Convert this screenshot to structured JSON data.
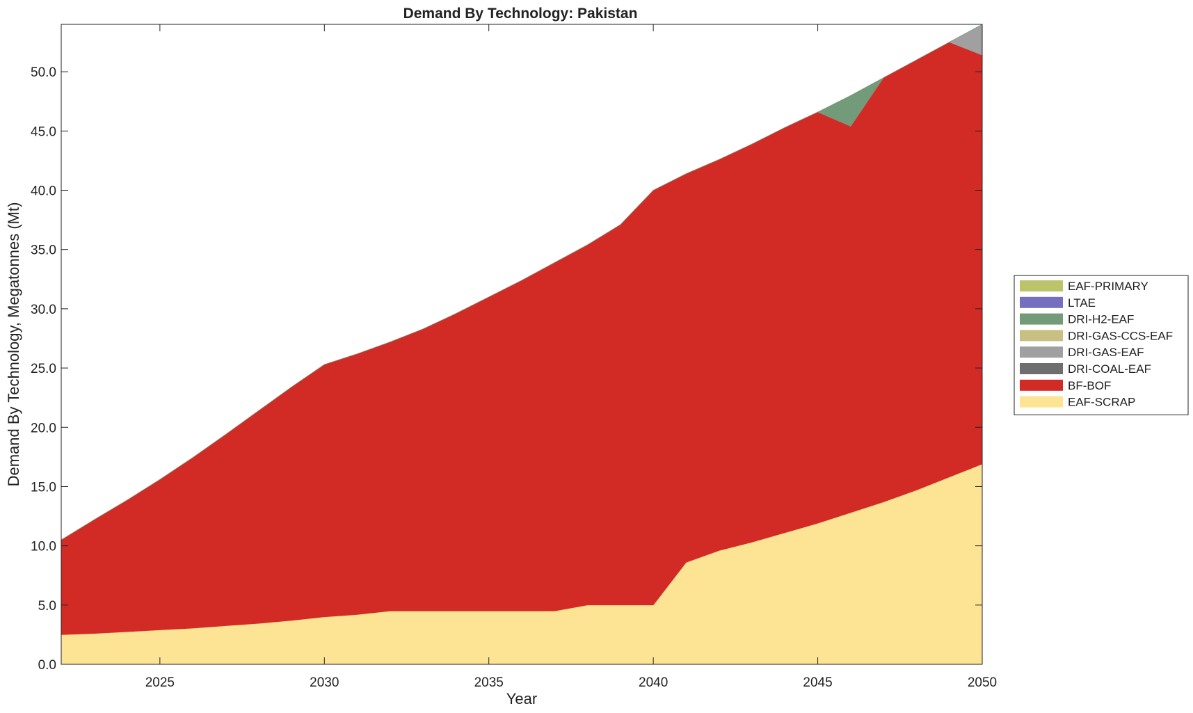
{
  "chart_data": {
    "type": "area",
    "stacked": true,
    "title": "Demand By Technology: Pakistan",
    "xlabel": "Year",
    "ylabel": "Demand By Technology, Megatonnes (Mt)",
    "xlim": [
      2022,
      2050
    ],
    "ylim": [
      0,
      54
    ],
    "x_ticks": [
      2025,
      2030,
      2035,
      2040,
      2045,
      2050
    ],
    "y_ticks": [
      "0.0",
      "5.0",
      "10.0",
      "15.0",
      "20.0",
      "25.0",
      "30.0",
      "35.0",
      "40.0",
      "45.0",
      "50.0"
    ],
    "grid": false,
    "legend_position": "right",
    "x": [
      2022,
      2023,
      2024,
      2025,
      2026,
      2027,
      2028,
      2029,
      2030,
      2031,
      2032,
      2033,
      2034,
      2035,
      2036,
      2037,
      2038,
      2039,
      2040,
      2041,
      2042,
      2043,
      2044,
      2045,
      2046,
      2047,
      2048,
      2049,
      2050
    ],
    "series": [
      {
        "name": "EAF-SCRAP",
        "color": "#FDE394",
        "values": [
          2.5,
          2.6,
          2.75,
          2.9,
          3.05,
          3.25,
          3.45,
          3.7,
          4.0,
          4.2,
          4.5,
          4.5,
          4.5,
          4.5,
          4.5,
          4.5,
          5.0,
          5.0,
          5.0,
          8.6,
          9.6,
          10.3,
          11.1,
          11.9,
          12.8,
          13.7,
          14.7,
          15.8,
          16.9
        ]
      },
      {
        "name": "BF-BOF",
        "color": "#D22B25",
        "values": [
          8.0,
          9.6,
          11.1,
          12.7,
          14.4,
          16.15,
          17.95,
          19.7,
          21.3,
          22.0,
          22.7,
          23.8,
          25.1,
          26.5,
          27.9,
          29.4,
          30.4,
          32.1,
          35.0,
          32.8,
          33.0,
          33.6,
          34.2,
          34.7,
          32.6,
          35.8,
          36.3,
          36.7,
          34.5
        ]
      },
      {
        "name": "DRI-COAL-EAF",
        "color": "#6E6E6E",
        "values": [
          0,
          0,
          0,
          0,
          0,
          0,
          0,
          0,
          0,
          0,
          0,
          0,
          0,
          0,
          0,
          0,
          0,
          0,
          0,
          0,
          0,
          0,
          0,
          0,
          0,
          0,
          0,
          0,
          0
        ]
      },
      {
        "name": "DRI-GAS-EAF",
        "color": "#A0A0A0",
        "values": [
          0,
          0,
          0,
          0,
          0,
          0,
          0,
          0,
          0,
          0,
          0,
          0,
          0,
          0,
          0,
          0,
          0,
          0,
          0,
          0,
          0,
          0,
          0,
          0,
          0,
          0,
          0,
          0,
          2.6
        ]
      },
      {
        "name": "DRI-GAS-CCS-EAF",
        "color": "#C8BF82",
        "values": [
          0,
          0,
          0,
          0,
          0,
          0,
          0,
          0,
          0,
          0,
          0,
          0,
          0,
          0,
          0,
          0,
          0,
          0,
          0,
          0,
          0,
          0,
          0,
          0,
          0,
          0,
          0,
          0,
          0
        ]
      },
      {
        "name": "DRI-H2-EAF",
        "color": "#739A79",
        "values": [
          0,
          0,
          0,
          0,
          0,
          0,
          0,
          0,
          0,
          0,
          0,
          0,
          0,
          0,
          0,
          0,
          0,
          0,
          0,
          0,
          0,
          0,
          0,
          0,
          2.6,
          0,
          0,
          0,
          0
        ]
      },
      {
        "name": "LTAE",
        "color": "#7470BF",
        "values": [
          0,
          0,
          0,
          0,
          0,
          0,
          0,
          0,
          0,
          0,
          0,
          0,
          0,
          0,
          0,
          0,
          0,
          0,
          0,
          0,
          0,
          0,
          0,
          0,
          0,
          0,
          0,
          0,
          0
        ]
      },
      {
        "name": "EAF-PRIMARY",
        "color": "#BCC46A",
        "values": [
          0,
          0,
          0,
          0,
          0,
          0,
          0,
          0,
          0,
          0,
          0,
          0,
          0,
          0,
          0,
          0,
          0,
          0,
          0,
          0,
          0,
          0,
          0,
          0,
          0,
          0,
          0,
          0,
          0
        ]
      }
    ],
    "legend_order": [
      "EAF-PRIMARY",
      "LTAE",
      "DRI-H2-EAF",
      "DRI-GAS-CCS-EAF",
      "DRI-GAS-EAF",
      "DRI-COAL-EAF",
      "BF-BOF",
      "EAF-SCRAP"
    ]
  }
}
